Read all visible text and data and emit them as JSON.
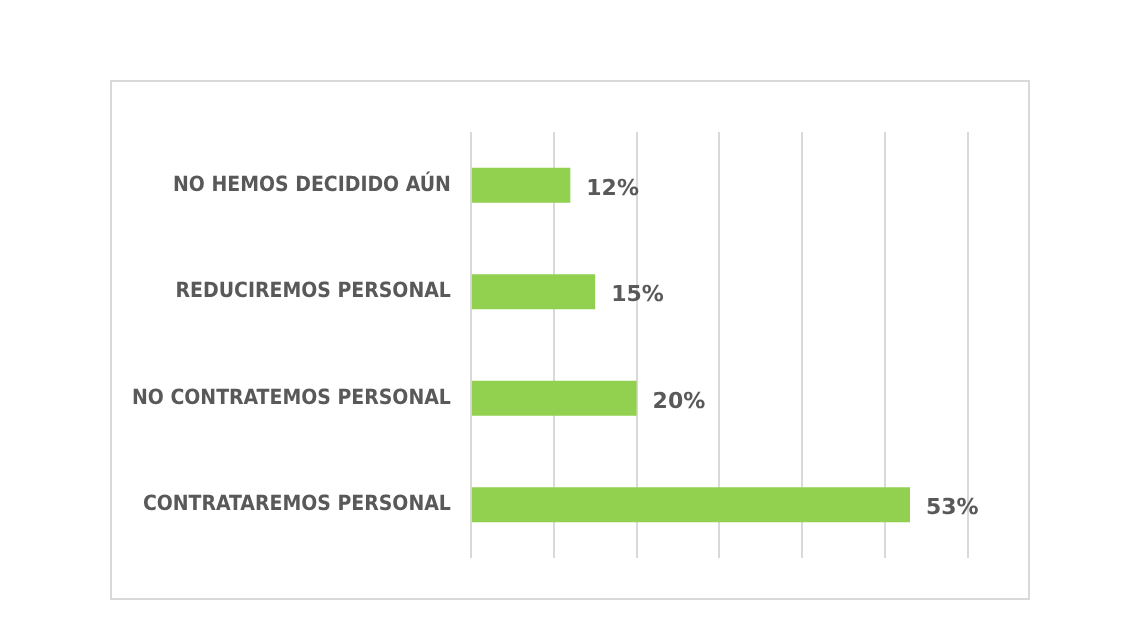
{
  "chart_data": {
    "type": "bar",
    "orientation": "horizontal",
    "categories": [
      "NO HEMOS DECIDIDO AÚN",
      "REDUCIREMOS PERSONAL",
      "NO CONTRATEMOS PERSONAL",
      "CONTRATAREMOS PERSONAL"
    ],
    "values": [
      12,
      15,
      20,
      53
    ],
    "color": "#92d050",
    "value_labels": [
      "12%",
      "15%",
      "20%",
      "53%"
    ],
    "xlim": [
      0,
      60
    ],
    "xticks": [
      {
        "value": 0,
        "label": null
      },
      {
        "value": 10,
        "label": null
      },
      {
        "value": 20,
        "label": null
      },
      {
        "value": 30,
        "label": null
      },
      {
        "value": 40,
        "label": null
      },
      {
        "value": 50,
        "label": null
      },
      {
        "value": 60,
        "label": null
      }
    ],
    "grid": "x",
    "tick_labels": "y",
    "legend": false
  }
}
